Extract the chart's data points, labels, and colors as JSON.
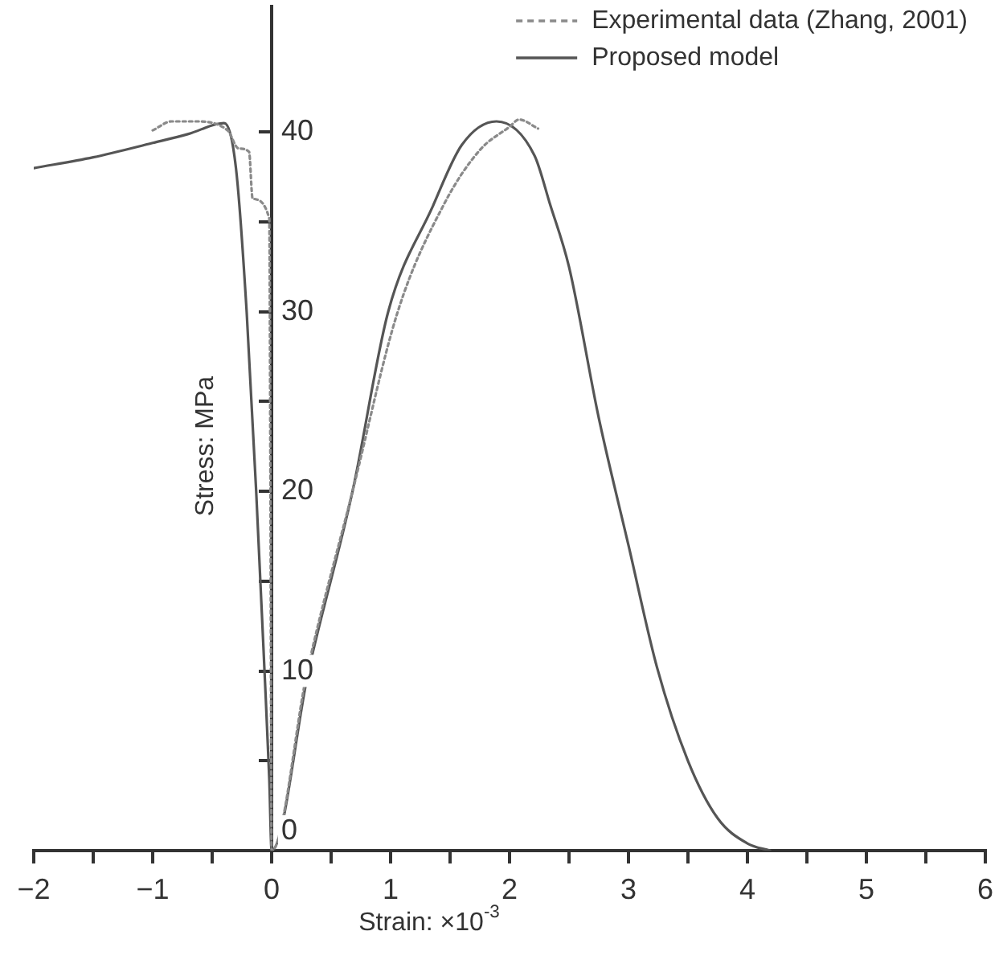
{
  "chart_data": {
    "type": "line",
    "xlabel": "Strain: ×10$^{-3}$",
    "ylabel": "Stress: MPa",
    "xlim": [
      -2,
      6
    ],
    "ylim": [
      0,
      47
    ],
    "xticks": [
      {
        "value": -2,
        "label": "−2"
      },
      {
        "value": -1.5,
        "label": null
      },
      {
        "value": -1,
        "label": "−1"
      },
      {
        "value": -0.5,
        "label": null
      },
      0,
      {
        "value": 0.5,
        "label": null
      },
      1,
      {
        "value": 1.5,
        "label": null
      },
      2,
      {
        "value": 2.5,
        "label": null
      },
      3,
      {
        "value": 3.5,
        "label": null
      },
      4,
      {
        "value": 4.5,
        "label": null
      },
      5,
      {
        "value": 5.5,
        "label": null
      },
      6
    ],
    "yticks": [
      0,
      {
        "value": 5,
        "label": null
      },
      10,
      {
        "value": 15,
        "label": null
      },
      20,
      {
        "value": 25,
        "label": null
      },
      30,
      {
        "value": 35,
        "label": null
      },
      40
    ],
    "grid": false,
    "legend": "top right",
    "marker": "none",
    "series": [
      {
        "name": "Experimental data (Zhang, 2001)",
        "color": "#8a8a8a",
        "line_style": "dotted",
        "x": [
          -1.0,
          -0.84,
          -0.65,
          -0.37,
          -0.28,
          -0.19,
          -0.16,
          -0.02,
          -0.01,
          0,
          0.3,
          0.68,
          1.06,
          1.45,
          1.75,
          2.0,
          2.08,
          2.24
        ],
        "values": [
          40.1,
          40.6,
          40.6,
          40.1,
          39.1,
          38.9,
          36.3,
          35.2,
          20,
          0,
          10,
          20,
          30,
          36,
          39,
          40.3,
          40.7,
          40.2
        ]
      },
      {
        "name": "Proposed model",
        "color": "#555555",
        "line_style": "solid",
        "x": [
          -2,
          -1.5,
          -1,
          -0.7,
          -0.4,
          -0.3,
          -0.21,
          -0.13,
          -0.06,
          -0.02,
          0,
          0.31,
          0.68,
          0.98,
          1.35,
          1.6,
          1.89,
          2.21,
          2.34,
          2.5,
          2.75,
          3.0,
          3.24,
          3.5,
          3.75,
          4.0,
          4.19
        ],
        "values": [
          38.0,
          38.6,
          39.4,
          39.9,
          40.5,
          38.0,
          30,
          20,
          10,
          4,
          0,
          10,
          20,
          30,
          35.8,
          39.3,
          40.6,
          38.7,
          36,
          32.5,
          24.1,
          17,
          10.2,
          5,
          1.8,
          0.4,
          0
        ]
      }
    ]
  }
}
